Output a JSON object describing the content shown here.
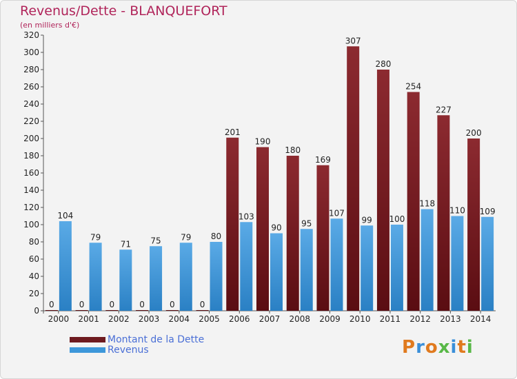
{
  "header": {
    "title": "Revenus/Dette - BLANQUEFORT",
    "subtitle": "(en milliers d'€)"
  },
  "legend": {
    "items": [
      {
        "label": "Montant de la Dette",
        "color": "#6e1a1f"
      },
      {
        "label": "Revenus",
        "color": "#3d97da"
      }
    ]
  },
  "logo": {
    "text": "Proxiti",
    "colors": [
      "#e07a1e",
      "#3a8fd9",
      "#e07a1e",
      "#58b847",
      "#3a8fd9",
      "#e07a1e",
      "#58b847"
    ]
  },
  "chart_data": {
    "type": "bar",
    "categories": [
      "2000",
      "2001",
      "2002",
      "2003",
      "2004",
      "2005",
      "2006",
      "2007",
      "2008",
      "2009",
      "2010",
      "2011",
      "2012",
      "2013",
      "2014"
    ],
    "series": [
      {
        "name": "Montant de la Dette",
        "color": "#7e2127",
        "values": [
          0,
          0,
          0,
          0,
          0,
          0,
          201,
          190,
          180,
          169,
          307,
          280,
          254,
          227,
          200
        ]
      },
      {
        "name": "Revenus",
        "color": "#3d97da",
        "values": [
          104,
          79,
          71,
          75,
          79,
          80,
          103,
          90,
          95,
          107,
          99,
          100,
          118,
          110,
          109
        ]
      }
    ],
    "ylim": [
      0,
      320
    ],
    "yticks": [
      0,
      20,
      40,
      60,
      80,
      100,
      120,
      140,
      160,
      180,
      200,
      220,
      240,
      260,
      280,
      300,
      320
    ],
    "grid": false,
    "legend_position": "bottom-left"
  }
}
